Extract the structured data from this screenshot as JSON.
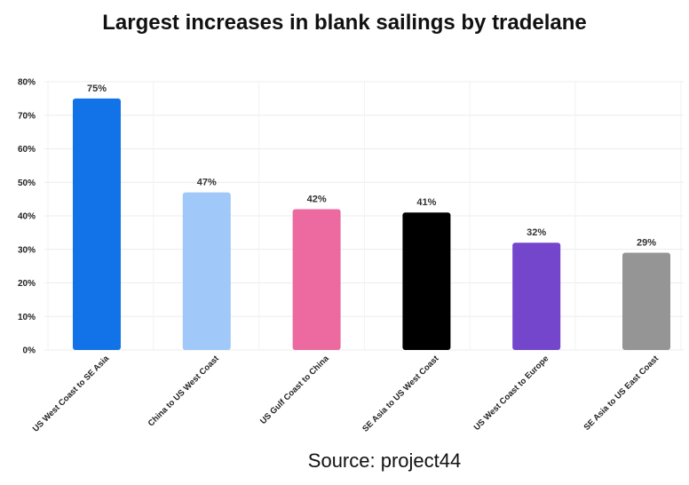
{
  "chart_data": {
    "type": "bar",
    "title": "Largest increases in blank sailings by tradelane",
    "categories": [
      "US West Coast to SE Asia",
      "China to US West Coast",
      "US Gulf Coast to China",
      "SE Asia to US West Coast",
      "US West Coast to Europe",
      "SE Asia to US East Coast"
    ],
    "values": [
      75,
      47,
      42,
      41,
      32,
      29
    ],
    "value_labels": [
      "75%",
      "47%",
      "42%",
      "41%",
      "32%",
      "29%"
    ],
    "colors": [
      "#1273e8",
      "#a0c8f8",
      "#ec6aa0",
      "#000000",
      "#7446cc",
      "#959595"
    ],
    "y_ticks": [
      0,
      10,
      20,
      30,
      40,
      50,
      60,
      70,
      80
    ],
    "y_tick_labels": [
      "0%",
      "10%",
      "20%",
      "30%",
      "40%",
      "50%",
      "60%",
      "70%",
      "80%"
    ],
    "ylim": [
      0,
      80
    ],
    "xlabel": "",
    "ylabel": "",
    "grid": true,
    "legend": "none"
  },
  "source": "Source: project44"
}
